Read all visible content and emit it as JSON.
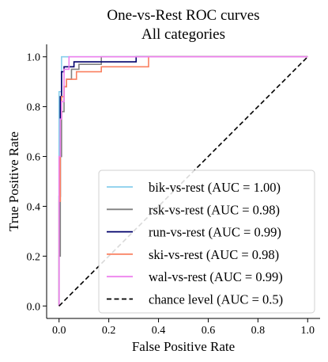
{
  "chart_data": {
    "type": "line",
    "title": [
      "One-vs-Rest ROC curves",
      "All categories"
    ],
    "xlabel": "False Positive Rate",
    "ylabel": "True Positive Rate",
    "xlim": [
      -0.05,
      1.05
    ],
    "ylim": [
      -0.05,
      1.05
    ],
    "xticks": [
      0.0,
      0.2,
      0.4,
      0.6,
      0.8,
      1.0
    ],
    "yticks": [
      0.0,
      0.2,
      0.4,
      0.6,
      0.8,
      1.0
    ],
    "xtick_labels": [
      "0.0",
      "0.2",
      "0.4",
      "0.6",
      "0.8",
      "1.0"
    ],
    "ytick_labels": [
      "0.0",
      "0.2",
      "0.4",
      "0.6",
      "0.8",
      "1.0"
    ],
    "grid": false,
    "legend_position": "lower-right",
    "series": [
      {
        "name": "bik-vs-rest (AUC = 1.00)",
        "color": "#87ceeb",
        "dashed": false,
        "points": [
          [
            0,
            0
          ],
          [
            0,
            0.86
          ],
          [
            0.01,
            0.86
          ],
          [
            0.01,
            1.0
          ],
          [
            1.0,
            1.0
          ]
        ]
      },
      {
        "name": "rsk-vs-rest (AUC = 0.98)",
        "color": "#808080",
        "dashed": false,
        "points": [
          [
            0,
            0
          ],
          [
            0,
            0.2
          ],
          [
            0.005,
            0.2
          ],
          [
            0.005,
            0.6
          ],
          [
            0.01,
            0.6
          ],
          [
            0.01,
            0.78
          ],
          [
            0.02,
            0.78
          ],
          [
            0.02,
            0.88
          ],
          [
            0.03,
            0.88
          ],
          [
            0.03,
            0.91
          ],
          [
            0.05,
            0.91
          ],
          [
            0.05,
            0.95
          ],
          [
            0.08,
            0.95
          ],
          [
            0.08,
            0.97
          ],
          [
            0.17,
            0.97
          ],
          [
            0.17,
            1.0
          ],
          [
            1.0,
            1.0
          ]
        ]
      },
      {
        "name": "run-vs-rest (AUC = 0.99)",
        "color": "#00006b",
        "dashed": false,
        "points": [
          [
            0,
            0
          ],
          [
            0,
            0.44
          ],
          [
            0.005,
            0.44
          ],
          [
            0.005,
            0.84
          ],
          [
            0.01,
            0.84
          ],
          [
            0.01,
            0.94
          ],
          [
            0.02,
            0.94
          ],
          [
            0.02,
            0.96
          ],
          [
            0.06,
            0.96
          ],
          [
            0.06,
            0.98
          ],
          [
            0.31,
            0.98
          ],
          [
            0.31,
            1.0
          ],
          [
            1.0,
            1.0
          ]
        ]
      },
      {
        "name": "ski-vs-rest (AUC = 0.98)",
        "color": "#fa8060",
        "dashed": false,
        "points": [
          [
            0,
            0
          ],
          [
            0,
            0.42
          ],
          [
            0.005,
            0.42
          ],
          [
            0.005,
            0.75
          ],
          [
            0.01,
            0.75
          ],
          [
            0.01,
            0.84
          ],
          [
            0.02,
            0.84
          ],
          [
            0.02,
            0.88
          ],
          [
            0.03,
            0.88
          ],
          [
            0.03,
            0.91
          ],
          [
            0.07,
            0.91
          ],
          [
            0.07,
            0.94
          ],
          [
            0.17,
            0.94
          ],
          [
            0.17,
            0.96
          ],
          [
            0.36,
            0.96
          ],
          [
            0.36,
            1.0
          ],
          [
            1.0,
            1.0
          ]
        ]
      },
      {
        "name": "wal-vs-rest (AUC = 0.99)",
        "color": "#ee82ee",
        "dashed": false,
        "points": [
          [
            0,
            0
          ],
          [
            0,
            0.6
          ],
          [
            0.005,
            0.6
          ],
          [
            0.005,
            0.75
          ],
          [
            0.01,
            0.75
          ],
          [
            0.01,
            0.82
          ],
          [
            0.02,
            0.82
          ],
          [
            0.02,
            0.95
          ],
          [
            0.04,
            0.95
          ],
          [
            0.04,
            1.0
          ],
          [
            1.0,
            1.0
          ]
        ]
      },
      {
        "name": "chance level (AUC = 0.5)",
        "color": "#000000",
        "dashed": true,
        "points": [
          [
            0,
            0
          ],
          [
            1,
            1
          ]
        ]
      }
    ]
  }
}
